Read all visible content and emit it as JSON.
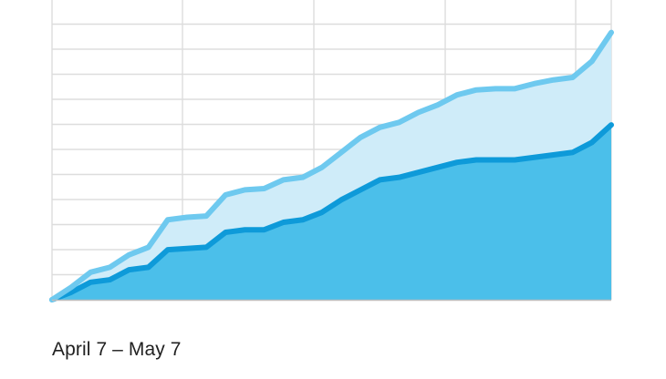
{
  "chart_data": {
    "type": "area",
    "stacked": true,
    "grid": true,
    "legend": "none",
    "title": "",
    "xlabel": "",
    "ylabel": "",
    "x": [
      1,
      2,
      3,
      4,
      5,
      6,
      7,
      8,
      9,
      10,
      11,
      12,
      13,
      14,
      15,
      16,
      17,
      18,
      19,
      20,
      21,
      22,
      23,
      24,
      25,
      26,
      27,
      28,
      29,
      30
    ],
    "xlim": [
      1,
      30
    ],
    "ylim": [
      0,
      120
    ],
    "series": [
      {
        "color": "#4bbfea",
        "line_color": "#0e9ad9",
        "values": [
          0,
          3,
          7,
          8,
          12,
          13,
          20,
          20.5,
          21,
          27,
          28,
          28,
          31,
          32,
          35,
          40,
          44,
          48,
          49,
          51,
          53,
          55,
          56,
          56,
          56,
          57,
          58,
          59,
          63,
          70
        ]
      },
      {
        "color": "#cfecf9",
        "line_color": "#6ec9ef",
        "values": [
          0,
          2,
          4,
          5,
          6,
          8,
          12,
          12.5,
          12.5,
          15,
          16,
          16.5,
          17,
          17,
          18,
          19,
          21,
          21,
          22,
          24,
          25,
          27,
          28,
          28.5,
          28.5,
          29.5,
          30,
          30,
          32.5,
          37
        ]
      }
    ]
  },
  "caption": "April 7 – May 7"
}
